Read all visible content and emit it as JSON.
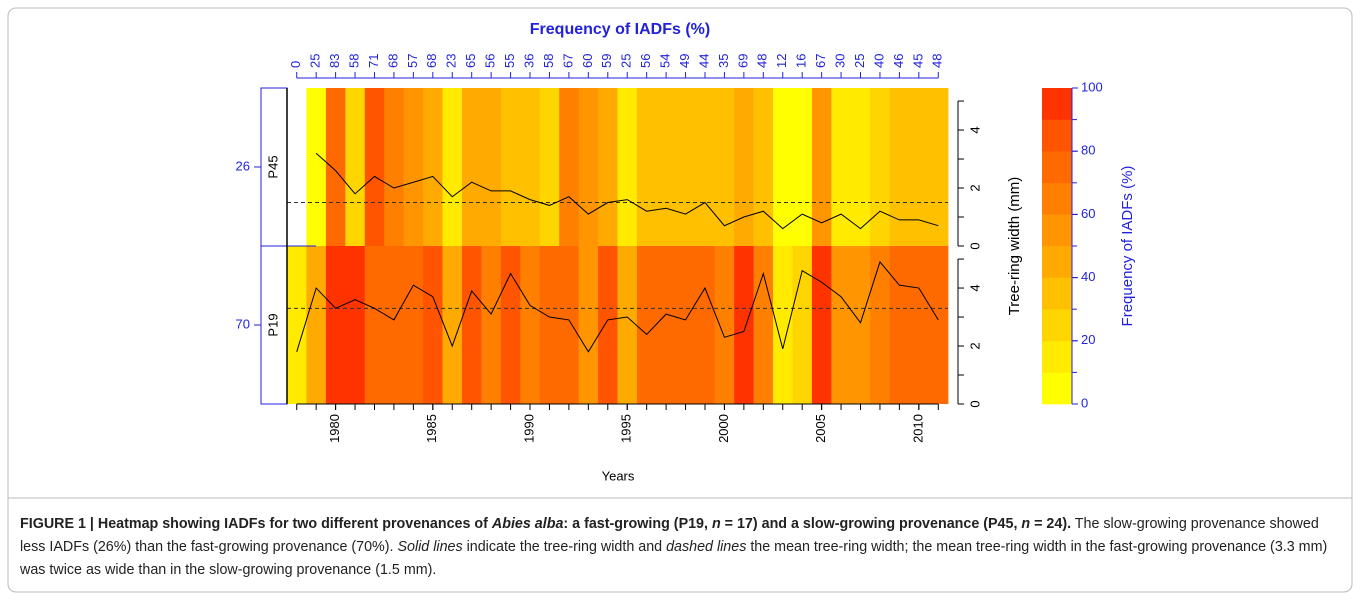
{
  "chart_data": {
    "type": "heatmap",
    "title": "Frequency of IADFs (%)",
    "top_labels": [
      0,
      25,
      83,
      58,
      71,
      68,
      57,
      68,
      23,
      65,
      56,
      55,
      36,
      58,
      67,
      60,
      59,
      25,
      56,
      54,
      49,
      44,
      35,
      69,
      48,
      12,
      16,
      67,
      30,
      25,
      40,
      46,
      45,
      48
    ],
    "x": [
      1978,
      1979,
      1980,
      1981,
      1982,
      1983,
      1984,
      1985,
      1986,
      1987,
      1988,
      1989,
      1990,
      1991,
      1992,
      1993,
      1994,
      1995,
      1996,
      1997,
      1998,
      1999,
      2000,
      2001,
      2002,
      2003,
      2004,
      2005,
      2006,
      2007,
      2008,
      2009,
      2010,
      2011
    ],
    "xlim": [
      1977.5,
      2011.5
    ],
    "xticks": [
      1980,
      1985,
      1990,
      1995,
      2000,
      2005,
      2010
    ],
    "xlabel": "Years",
    "rows": [
      {
        "name": "P45",
        "frequency": 26,
        "values": [
          null,
          5,
          75,
          20,
          80,
          65,
          55,
          40,
          15,
          45,
          45,
          30,
          35,
          20,
          60,
          55,
          45,
          10,
          35,
          30,
          30,
          30,
          35,
          45,
          35,
          5,
          5,
          55,
          10,
          10,
          25,
          30,
          30,
          30
        ],
        "widths": [
          null,
          3.2,
          2.6,
          1.8,
          2.4,
          2.0,
          2.2,
          2.4,
          1.7,
          2.2,
          1.9,
          1.9,
          1.6,
          1.4,
          1.7,
          1.1,
          1.5,
          1.6,
          1.2,
          1.3,
          1.1,
          1.5,
          0.7,
          1.0,
          1.2,
          0.6,
          1.1,
          0.8,
          1.1,
          0.6,
          1.2,
          0.9,
          0.9,
          0.7
        ],
        "mean_width": 1.5
      },
      {
        "name": "P19",
        "frequency": 70,
        "values": [
          12,
          45,
          90,
          90,
          75,
          75,
          75,
          85,
          45,
          85,
          65,
          85,
          65,
          70,
          70,
          55,
          85,
          45,
          75,
          75,
          75,
          75,
          65,
          90,
          60,
          15,
          25,
          90,
          55,
          55,
          60,
          70,
          70,
          70
        ],
        "widths": [
          1.8,
          4.0,
          3.3,
          3.6,
          3.3,
          2.9,
          4.1,
          3.7,
          2.0,
          3.9,
          3.1,
          4.5,
          3.4,
          3.0,
          2.9,
          1.8,
          2.9,
          3.0,
          2.4,
          3.1,
          2.9,
          4.0,
          2.3,
          2.5,
          4.5,
          1.9,
          4.6,
          4.2,
          3.7,
          2.8,
          4.9,
          4.1,
          4.0,
          2.9
        ],
        "mean_width": 3.3
      }
    ],
    "y2label": "Tree-ring width (mm)",
    "y2lim": [
      0,
      5.45
    ],
    "y2ticks": [
      0,
      2,
      4
    ],
    "y2minor_ticks": [
      1,
      3,
      5
    ],
    "line_color": "#000000",
    "colorbar": {
      "label": "Frequency of IADFs (%)",
      "lim": [
        0,
        100
      ],
      "ticks": [
        0,
        20,
        40,
        60,
        80,
        100
      ],
      "colors": [
        "#ffff00",
        "#ffea00",
        "#ffd500",
        "#ffc000",
        "#ffaa00",
        "#ff9500",
        "#ff8000",
        "#ff6a00",
        "#ff5500",
        "#ff3300"
      ]
    }
  },
  "caption": [
    {
      "text": "FIGURE 1 | Heatmap showing IADFs for two different provenances of ",
      "style": "bold"
    },
    {
      "text": "Abies alba",
      "style": "bold-italic"
    },
    {
      "text": ": a fast-growing (P19, ",
      "style": "bold"
    },
    {
      "text": "n",
      "style": "bold-italic"
    },
    {
      "text": " = 17) and a slow-growing provenance (P45, ",
      "style": "bold"
    },
    {
      "text": "n",
      "style": "bold-italic"
    },
    {
      "text": " = 24).",
      "style": "bold"
    },
    {
      "text": " The slow-growing provenance showed less IADFs (26%) than the fast-growing provenance (70%). ",
      "style": "normal"
    },
    {
      "text": "Solid lines",
      "style": "italic"
    },
    {
      "text": " indicate the tree-ring width and ",
      "style": "normal"
    },
    {
      "text": "dashed lines",
      "style": "italic"
    },
    {
      "text": " the mean tree-ring width; the mean tree-ring width in the fast-growing provenance (3.3 mm) was twice as wide than in the slow-growing provenance (1.5 mm).",
      "style": "normal"
    }
  ]
}
